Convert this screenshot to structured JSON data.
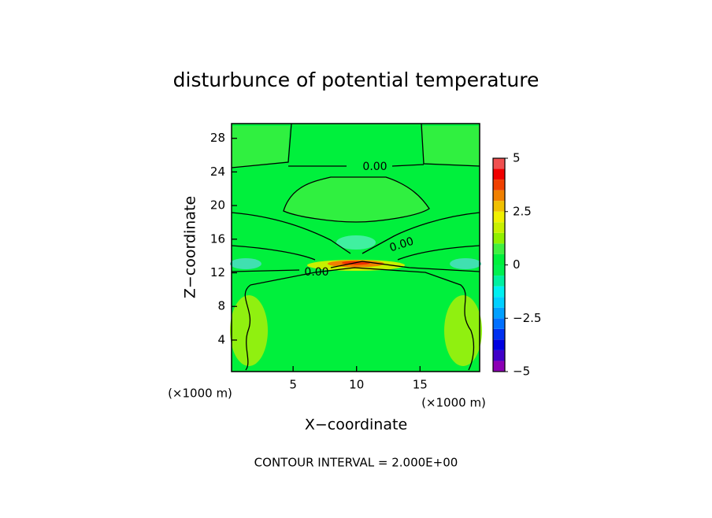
{
  "chart_data": {
    "type": "contour",
    "title": "disturbunce of potential temperature",
    "x_label": "X−coordinate",
    "y_label": "Z−coordinate",
    "x_unit_left": "(×1000 m)",
    "x_unit_right": "(×1000 m)",
    "footer": "CONTOUR INTERVAL = 2.000E+00",
    "contour_labels": [
      "0.00",
      "0.00",
      "0.00"
    ],
    "xlim": [
      0.15,
      19.7
    ],
    "xticks": [
      5,
      10,
      15
    ],
    "ylim": [
      0.25,
      29.75
    ],
    "yticks": [
      4,
      8,
      12,
      16,
      20,
      24,
      28
    ],
    "colorbar": {
      "lim": [
        -5,
        5
      ],
      "ticks": [
        {
          "value": -5,
          "label": "−5"
        },
        {
          "value": -2.5,
          "label": "−2.5"
        },
        0,
        2.5,
        5
      ],
      "levels": [
        -5,
        -4.5,
        -4,
        -3.5,
        -3,
        -2.5,
        -2,
        -1.5,
        -1,
        -0.5,
        0,
        0.5,
        1,
        1.5,
        2,
        2.5,
        3,
        3.5,
        4,
        4.5,
        5
      ],
      "colors": [
        "#8c00b4",
        "#4000c8",
        "#0000e0",
        "#0030f0",
        "#0070ff",
        "#00a0ff",
        "#00d0ff",
        "#00f0f0",
        "#00f0a0",
        "#00f050",
        "#00f03c",
        "#40f040",
        "#90f000",
        "#c8f000",
        "#f0f000",
        "#f0c000",
        "#f08000",
        "#f04000",
        "#f00000",
        "#f05050"
      ]
    }
  }
}
